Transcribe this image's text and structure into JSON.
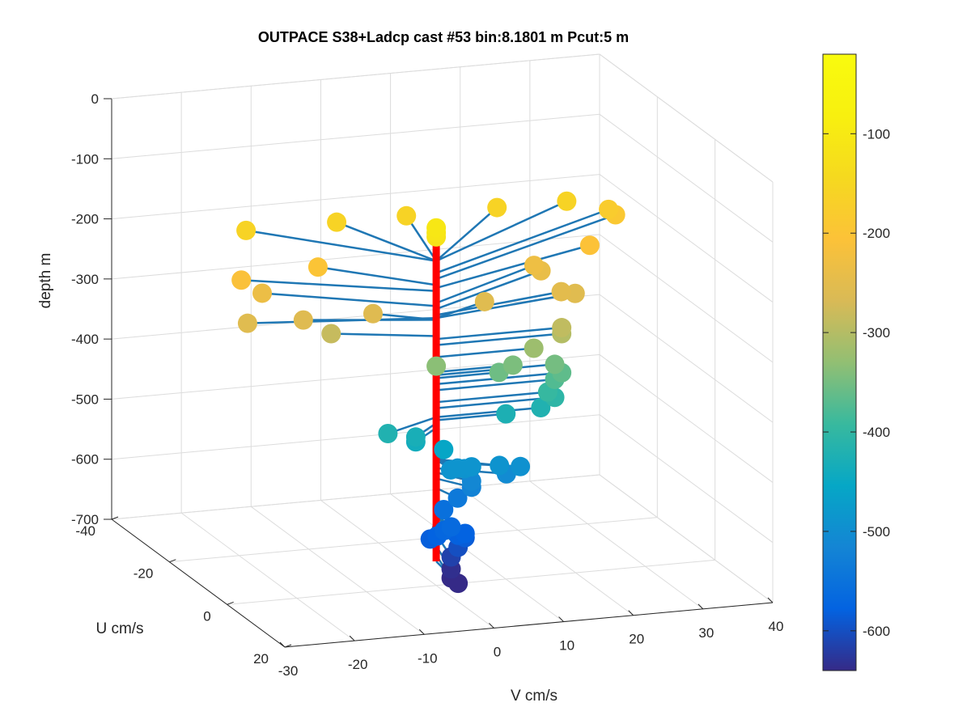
{
  "chart_data": {
    "type": "scatter3d",
    "title": "OUTPACE S38+Ladcp cast #53 bin:8.1801 m  Pcut:5 m",
    "zlabel": "depth m",
    "ulabel": "U cm/s",
    "vlabel": "V cm/s",
    "zlim": [
      -700,
      0
    ],
    "ulim": [
      -40,
      20
    ],
    "vlim": [
      -30,
      40
    ],
    "z_ticks": [
      "0",
      "-100",
      "-200",
      "-300",
      "-400",
      "-500",
      "-600",
      "-700"
    ],
    "u_ticks": [
      "-40",
      "-20",
      "0",
      "20"
    ],
    "v_ticks": [
      "-30",
      "-20",
      "-10",
      "0",
      "10",
      "20",
      "30",
      "40"
    ],
    "colorbar": {
      "range": [
        -640,
        -20
      ],
      "ticks": [
        "-100",
        "-200",
        "-300",
        "-400",
        "-500",
        "-600"
      ],
      "colormap": "parula"
    },
    "profile_line_color": "#ff0000",
    "vector_color": "#1f77b4",
    "points": [
      {
        "v": 0,
        "u": 0,
        "z": -105
      },
      {
        "v": 0,
        "u": 0,
        "z": -113
      },
      {
        "v": 0,
        "u": 0,
        "z": -120
      },
      {
        "v": -19,
        "u": -20,
        "z": -160
      },
      {
        "v": -6,
        "u": -20,
        "z": -160
      },
      {
        "v": 4,
        "u": -20,
        "z": -160
      },
      {
        "v": 17,
        "u": -20,
        "z": -160
      },
      {
        "v": 27,
        "u": -20,
        "z": -160
      },
      {
        "v": 33,
        "u": -20,
        "z": -180
      },
      {
        "v": 34,
        "u": -20,
        "z": -190
      },
      {
        "v": -12,
        "u": -12,
        "z": -200
      },
      {
        "v": -23,
        "u": -12,
        "z": -210
      },
      {
        "v": 27,
        "u": -12,
        "z": -205
      },
      {
        "v": -20,
        "u": -12,
        "z": -235
      },
      {
        "v": 19,
        "u": -12,
        "z": -230
      },
      {
        "v": 20,
        "u": -12,
        "z": -240
      },
      {
        "v": -25,
        "u": -5,
        "z": -255
      },
      {
        "v": -17,
        "u": -5,
        "z": -258
      },
      {
        "v": -7,
        "u": -5,
        "z": -258
      },
      {
        "v": 9,
        "u": -5,
        "z": -255
      },
      {
        "v": 20,
        "u": -5,
        "z": -250
      },
      {
        "v": 22,
        "u": -5,
        "z": -255
      },
      {
        "v": -13,
        "u": -5,
        "z": -285
      },
      {
        "v": 18,
        "u": 0,
        "z": -290
      },
      {
        "v": 18,
        "u": 0,
        "z": -300
      },
      {
        "v": 14,
        "u": 0,
        "z": -320
      },
      {
        "v": 0,
        "u": 0,
        "z": -335
      },
      {
        "v": 11,
        "u": 0,
        "z": -345
      },
      {
        "v": 9,
        "u": 0,
        "z": -355
      },
      {
        "v": 17,
        "u": 0,
        "z": -350
      },
      {
        "v": 18,
        "u": 0,
        "z": -365
      },
      {
        "v": 17,
        "u": 0,
        "z": -375
      },
      {
        "v": 16,
        "u": 0,
        "z": -395
      },
      {
        "v": 17,
        "u": 0,
        "z": -405
      },
      {
        "v": 15,
        "u": 0,
        "z": -420
      },
      {
        "v": 10,
        "u": 0,
        "z": -425
      },
      {
        "v": -9,
        "u": 5,
        "z": -420
      },
      {
        "v": -5,
        "u": 5,
        "z": -430
      },
      {
        "v": -5,
        "u": 5,
        "z": -438
      },
      {
        "v": -1,
        "u": 5,
        "z": -455
      },
      {
        "v": 0,
        "u": 5,
        "z": -490
      },
      {
        "v": 1,
        "u": 5,
        "z": -488
      },
      {
        "v": 2,
        "u": 5,
        "z": -490
      },
      {
        "v": 3,
        "u": 5,
        "z": -488
      },
      {
        "v": 7,
        "u": 5,
        "z": -490
      },
      {
        "v": 10,
        "u": 5,
        "z": -495
      },
      {
        "v": 8,
        "u": 5,
        "z": -505
      },
      {
        "v": 3,
        "u": 5,
        "z": -512
      },
      {
        "v": 3,
        "u": 5,
        "z": -522
      },
      {
        "v": 1,
        "u": 5,
        "z": -538
      },
      {
        "v": -1,
        "u": 5,
        "z": -555
      },
      {
        "v": -2,
        "u": 10,
        "z": -565
      },
      {
        "v": -3,
        "u": 10,
        "z": -570
      },
      {
        "v": -4,
        "u": 10,
        "z": -578
      },
      {
        "v": -5,
        "u": 10,
        "z": -582
      },
      {
        "v": -1,
        "u": 10,
        "z": -580
      },
      {
        "v": 0,
        "u": 10,
        "z": -578
      },
      {
        "v": 0,
        "u": 10,
        "z": -585
      },
      {
        "v": -1,
        "u": 10,
        "z": -600
      },
      {
        "v": -2,
        "u": 10,
        "z": -615
      },
      {
        "v": -2,
        "u": 10,
        "z": -635
      },
      {
        "v": -2,
        "u": 10,
        "z": -650
      },
      {
        "v": -1,
        "u": 10,
        "z": -660
      }
    ],
    "profile": {
      "v": 0,
      "u": 0,
      "z_top": -120,
      "z_bottom": -660
    }
  }
}
